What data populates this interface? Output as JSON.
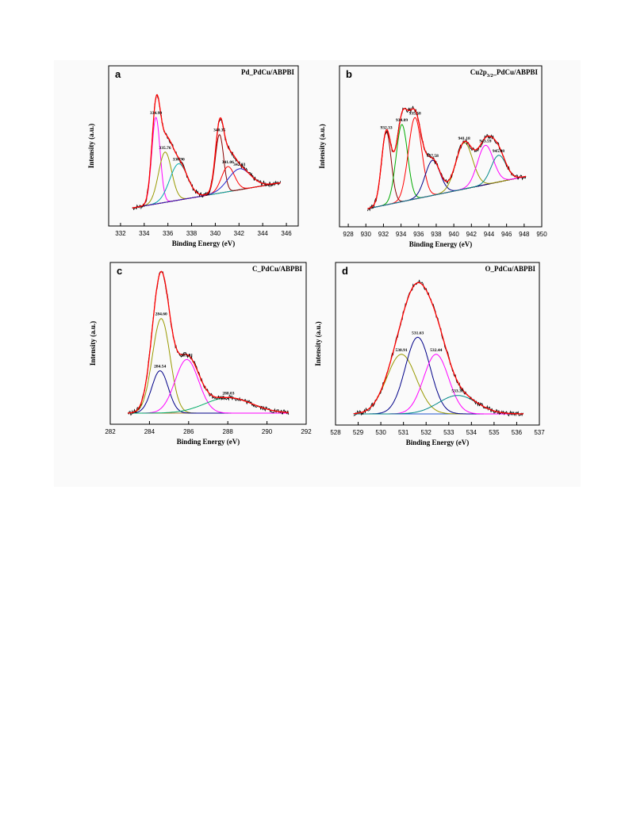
{
  "chart_data": [
    {
      "type": "line",
      "panel_letter": "a",
      "title": "Pd_PdCu/ABPBI",
      "title_sub": "",
      "title_rest": "",
      "xlabel": "Binding Energy (eV)",
      "ylabel": "Intensity (a.u.)",
      "xlim": [
        331,
        347
      ],
      "xticks": [
        332,
        334,
        336,
        338,
        340,
        342,
        344,
        346
      ],
      "baseline": [
        [
          333,
          0.05
        ],
        [
          345.5,
          0.23
        ]
      ],
      "peaks": [
        {
          "center": 334.99,
          "height": 0.62,
          "width": 0.35,
          "color": "#ff00ff",
          "label": "334.99"
        },
        {
          "center": 335.76,
          "height": 0.36,
          "width": 0.55,
          "color": "#999900",
          "label": "335.76"
        },
        {
          "center": 336.9,
          "height": 0.26,
          "width": 0.75,
          "color": "#00aaaa",
          "label": "336.90"
        },
        {
          "center": 340.35,
          "height": 0.42,
          "width": 0.35,
          "color": "#880000",
          "label": "340.35"
        },
        {
          "center": 341.06,
          "height": 0.18,
          "width": 0.55,
          "color": "#ff0000",
          "label": "341.06"
        },
        {
          "center": 342.03,
          "height": 0.15,
          "width": 0.95,
          "color": "#2222cc",
          "label": "342.03"
        }
      ]
    },
    {
      "type": "line",
      "panel_letter": "b",
      "title": "Cu2p",
      "title_sub": "3/2",
      "title_rest": "_PdCu/ABPBI",
      "xlabel": "Binding Energy (eV)",
      "ylabel": "Intensity (a.u.)",
      "xlim": [
        927,
        950
      ],
      "xticks": [
        928,
        930,
        932,
        934,
        936,
        938,
        940,
        942,
        944,
        946,
        948,
        950
      ],
      "baseline": [
        [
          930.2,
          0.05
        ],
        [
          948.2,
          0.28
        ]
      ],
      "peaks": [
        {
          "center": 932.33,
          "height": 0.52,
          "width": 0.55,
          "color": "#880000",
          "label": "932.33"
        },
        {
          "center": 934.09,
          "height": 0.55,
          "width": 0.65,
          "color": "#00aa00",
          "label": "934.09"
        },
        {
          "center": 935.58,
          "height": 0.58,
          "width": 0.75,
          "color": "#ff0000",
          "label": "935.58"
        },
        {
          "center": 937.58,
          "height": 0.25,
          "width": 0.85,
          "color": "#000088",
          "label": "937.58"
        },
        {
          "center": 941.18,
          "height": 0.33,
          "width": 0.95,
          "color": "#999900",
          "label": "941.18"
        },
        {
          "center": 943.59,
          "height": 0.28,
          "width": 0.9,
          "color": "#ff00ff",
          "label": "943.59"
        },
        {
          "center": 945.08,
          "height": 0.19,
          "width": 0.85,
          "color": "#008888",
          "label": "945.08"
        }
      ]
    },
    {
      "type": "line",
      "panel_letter": "c",
      "title": "C_PdCu/ABPBI",
      "title_sub": "",
      "title_rest": "",
      "xlabel": "Binding Energy (eV)",
      "ylabel": "Intensity (a.u.)",
      "xlim": [
        282,
        292
      ],
      "xticks": [
        282,
        284,
        286,
        288,
        290,
        292
      ],
      "baseline": [
        [
          282.9,
          0.0
        ],
        [
          291.1,
          0.0
        ]
      ],
      "peaks": [
        {
          "center": 284.6,
          "height": 0.67,
          "width": 0.45,
          "color": "#999900",
          "label": "284.60"
        },
        {
          "center": 284.54,
          "height": 0.3,
          "width": 0.42,
          "color": "#000088",
          "label": "284.54"
        },
        {
          "center": 285.91,
          "height": 0.38,
          "width": 0.6,
          "color": "#ff00ff",
          "label": "285.91"
        },
        {
          "center": 288.03,
          "height": 0.11,
          "width": 1.2,
          "color": "#00aa66",
          "label": "288.03"
        }
      ]
    },
    {
      "type": "line",
      "panel_letter": "d",
      "title": "O_PdCu/ABPBI",
      "title_sub": "",
      "title_rest": "",
      "xlabel": "Binding Energy (eV)",
      "ylabel": "Intensity (a.u.)",
      "xlim": [
        528,
        537
      ],
      "xticks": [
        528,
        529,
        530,
        531,
        532,
        533,
        534,
        535,
        536,
        537
      ],
      "baseline": [
        [
          528.8,
          0.0
        ],
        [
          536.3,
          0.0
        ]
      ],
      "peaks": [
        {
          "center": 530.91,
          "height": 0.42,
          "width": 0.65,
          "color": "#999900",
          "label": "530.91"
        },
        {
          "center": 531.63,
          "height": 0.54,
          "width": 0.55,
          "color": "#000088",
          "label": "531.63"
        },
        {
          "center": 532.44,
          "height": 0.42,
          "width": 0.55,
          "color": "#ff00ff",
          "label": "532.44"
        },
        {
          "center": 533.39,
          "height": 0.13,
          "width": 0.85,
          "color": "#008888",
          "label": "533.39"
        }
      ]
    }
  ]
}
